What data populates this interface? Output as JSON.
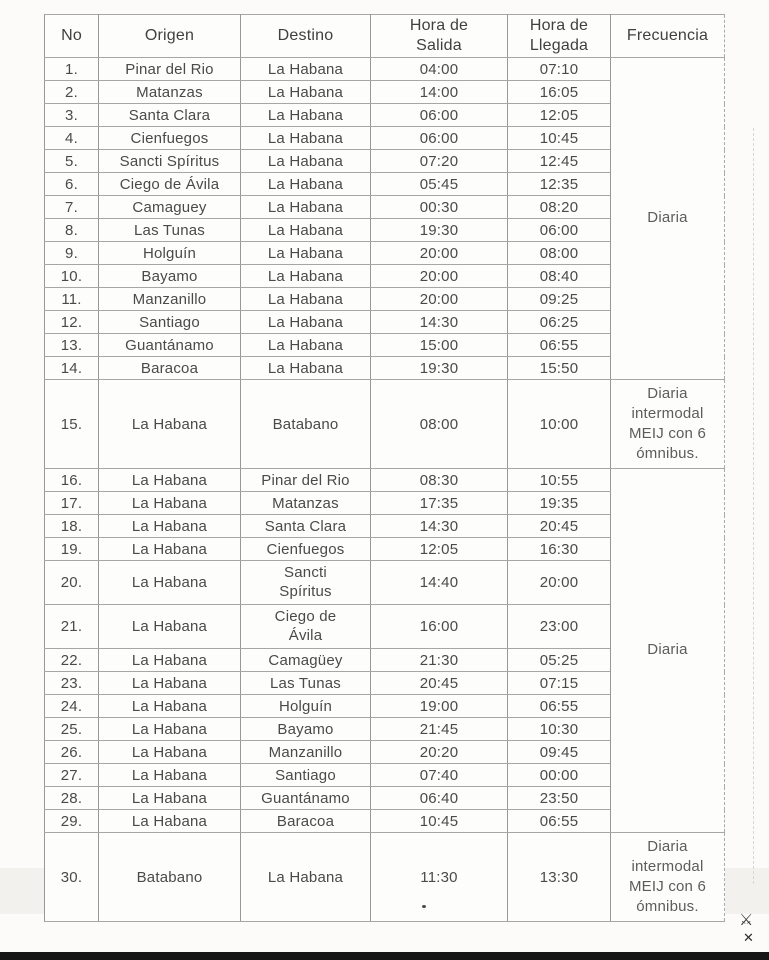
{
  "table": {
    "headers": [
      {
        "key": "no",
        "label": "No"
      },
      {
        "key": "origen",
        "label": "Origen"
      },
      {
        "key": "destino",
        "label": "Destino"
      },
      {
        "key": "salida",
        "label": "Hora de Salida"
      },
      {
        "key": "llegada",
        "label": "Hora de Llegada"
      },
      {
        "key": "frecuencia",
        "label": "Frecuencia"
      }
    ],
    "rows": [
      {
        "no": "1.",
        "origen": "Pinar del Rio",
        "destino": "La Habana",
        "salida": "04:00",
        "llegada": "07:10"
      },
      {
        "no": "2.",
        "origen": "Matanzas",
        "destino": "La Habana",
        "salida": "14:00",
        "llegada": "16:05"
      },
      {
        "no": "3.",
        "origen": "Santa Clara",
        "destino": "La Habana",
        "salida": "06:00",
        "llegada": "12:05"
      },
      {
        "no": "4.",
        "origen": "Cienfuegos",
        "destino": "La Habana",
        "salida": "06:00",
        "llegada": "10:45"
      },
      {
        "no": "5.",
        "origen": "Sancti Spíritus",
        "destino": "La Habana",
        "salida": "07:20",
        "llegada": "12:45"
      },
      {
        "no": "6.",
        "origen": "Ciego de Ávila",
        "destino": "La Habana",
        "salida": "05:45",
        "llegada": "12:35"
      },
      {
        "no": "7.",
        "origen": "Camaguey",
        "destino": "La Habana",
        "salida": "00:30",
        "llegada": "08:20"
      },
      {
        "no": "8.",
        "origen": "Las Tunas",
        "destino": "La Habana",
        "salida": "19:30",
        "llegada": "06:00"
      },
      {
        "no": "9.",
        "origen": "Holguín",
        "destino": "La Habana",
        "salida": "20:00",
        "llegada": "08:00"
      },
      {
        "no": "10.",
        "origen": "Bayamo",
        "destino": "La Habana",
        "salida": "20:00",
        "llegada": "08:40"
      },
      {
        "no": "11.",
        "origen": "Manzanillo",
        "destino": "La Habana",
        "salida": "20:00",
        "llegada": "09:25"
      },
      {
        "no": "12.",
        "origen": "Santiago",
        "destino": "La Habana",
        "salida": "14:30",
        "llegada": "06:25"
      },
      {
        "no": "13.",
        "origen": "Guantánamo",
        "destino": "La Habana",
        "salida": "15:00",
        "llegada": "06:55"
      },
      {
        "no": "14.",
        "origen": "Baracoa",
        "destino": "La Habana",
        "salida": "19:30",
        "llegada": "15:50"
      },
      {
        "no": "15.",
        "origen": "La Habana",
        "destino": "Batabano",
        "salida": "08:00",
        "llegada": "10:00"
      },
      {
        "no": "16.",
        "origen": "La Habana",
        "destino": "Pinar del Rio",
        "salida": "08:30",
        "llegada": "10:55"
      },
      {
        "no": "17.",
        "origen": "La Habana",
        "destino": "Matanzas",
        "salida": "17:35",
        "llegada": "19:35"
      },
      {
        "no": "18.",
        "origen": "La Habana",
        "destino": "Santa Clara",
        "salida": "14:30",
        "llegada": "20:45"
      },
      {
        "no": "19.",
        "origen": "La Habana",
        "destino": "Cienfuegos",
        "salida": "12:05",
        "llegada": "16:30"
      },
      {
        "no": "20.",
        "origen": "La Habana",
        "destino": "Sancti Spíritus",
        "salida": "14:40",
        "llegada": "20:00"
      },
      {
        "no": "21.",
        "origen": "La Habana",
        "destino": "Ciego de Ávila",
        "salida": "16:00",
        "llegada": "23:00"
      },
      {
        "no": "22.",
        "origen": "La Habana",
        "destino": "Camagüey",
        "salida": "21:30",
        "llegada": "05:25"
      },
      {
        "no": "23.",
        "origen": "La Habana",
        "destino": "Las Tunas",
        "salida": "20:45",
        "llegada": "07:15"
      },
      {
        "no": "24.",
        "origen": "La Habana",
        "destino": "Holguín",
        "salida": "19:00",
        "llegada": "06:55"
      },
      {
        "no": "25.",
        "origen": "La Habana",
        "destino": "Bayamo",
        "salida": "21:45",
        "llegada": "10:30"
      },
      {
        "no": "26.",
        "origen": "La Habana",
        "destino": "Manzanillo",
        "salida": "20:20",
        "llegada": "09:45"
      },
      {
        "no": "27.",
        "origen": "La Habana",
        "destino": "Santiago",
        "salida": "07:40",
        "llegada": "00:00"
      },
      {
        "no": "28.",
        "origen": "La Habana",
        "destino": "Guantánamo",
        "salida": "06:40",
        "llegada": "23:50"
      },
      {
        "no": "29.",
        "origen": "La Habana",
        "destino": "Baracoa",
        "salida": "10:45",
        "llegada": "06:55"
      },
      {
        "no": "30.",
        "origen": "Batabano",
        "destino": "La Habana",
        "salida": "11:30",
        "llegada": "13:30"
      }
    ],
    "frequency_groups": [
      {
        "start": 1,
        "span": 14,
        "label": "Diaria"
      },
      {
        "start": 15,
        "span": 1,
        "label": "Diaria intermodal MEIJ con 6 ómnibus."
      },
      {
        "start": 16,
        "span": 14,
        "label": "Diaria"
      },
      {
        "start": 30,
        "span": 1,
        "label": "Diaria intermodal MEIJ con 6 ómnibus."
      }
    ]
  },
  "icons": {
    "corner_emblem_glyph": "⚔",
    "corner_close_glyph": "✕"
  }
}
